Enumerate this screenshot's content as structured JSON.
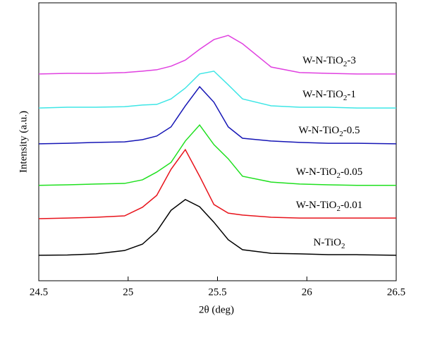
{
  "chart_data": {
    "type": "line",
    "xlabel": "2θ (deg)",
    "ylabel": "Intensity (a.u.)",
    "x": [
      24.5,
      24.66,
      24.82,
      24.98,
      25.08,
      25.16,
      25.24,
      25.32,
      25.4,
      25.48,
      25.56,
      25.64,
      25.8,
      25.96,
      26.12,
      26.28,
      26.5
    ],
    "xlim": [
      24.5,
      26.5
    ],
    "xticks": [
      24.5,
      25,
      25.5,
      26,
      26.5
    ],
    "ylim": [
      0,
      100
    ],
    "series": [
      {
        "name": "N-TiO2",
        "color": "#000000",
        "values": [
          9.2,
          9.3,
          9.7,
          10.9,
          13.2,
          17.8,
          25.4,
          29.3,
          26.7,
          21.1,
          14.8,
          11.2,
          9.9,
          9.7,
          9.4,
          9.4,
          9.2
        ]
      },
      {
        "name": "W-N-TiO2-0.01",
        "color": "#e8131b",
        "values": [
          22.4,
          22.6,
          22.9,
          23.4,
          26.5,
          30.8,
          40.2,
          47.3,
          37.7,
          27.5,
          24.4,
          23.7,
          22.9,
          22.6,
          22.6,
          22.6,
          22.6
        ]
      },
      {
        "name": "W-N-TiO2-0.05",
        "color": "#1fe01f",
        "values": [
          34.4,
          34.6,
          34.9,
          35.1,
          36.4,
          39.2,
          42.7,
          50.4,
          56.2,
          49.1,
          44.0,
          37.7,
          35.6,
          34.9,
          34.6,
          34.4,
          34.4
        ]
      },
      {
        "name": "W-N-TiO2-0.5",
        "color": "#1515b5",
        "values": [
          49.4,
          49.6,
          49.9,
          50.1,
          50.9,
          52.2,
          55.5,
          63.1,
          70.0,
          64.4,
          55.5,
          51.4,
          50.4,
          49.9,
          49.6,
          49.6,
          49.4
        ]
      },
      {
        "name": "W-N-TiO2-1",
        "color": "#3ee6e6",
        "values": [
          62.3,
          62.6,
          62.6,
          62.8,
          63.4,
          63.6,
          65.6,
          69.5,
          74.6,
          75.6,
          70.7,
          65.6,
          63.1,
          62.6,
          62.6,
          62.3,
          62.3
        ]
      },
      {
        "name": "W-N-TiO2-3",
        "color": "#e040e0",
        "values": [
          74.6,
          74.8,
          74.8,
          75.1,
          75.6,
          76.1,
          77.4,
          79.6,
          83.5,
          87.0,
          88.5,
          85.5,
          77.1,
          75.1,
          74.8,
          74.6,
          74.6
        ]
      }
    ]
  }
}
